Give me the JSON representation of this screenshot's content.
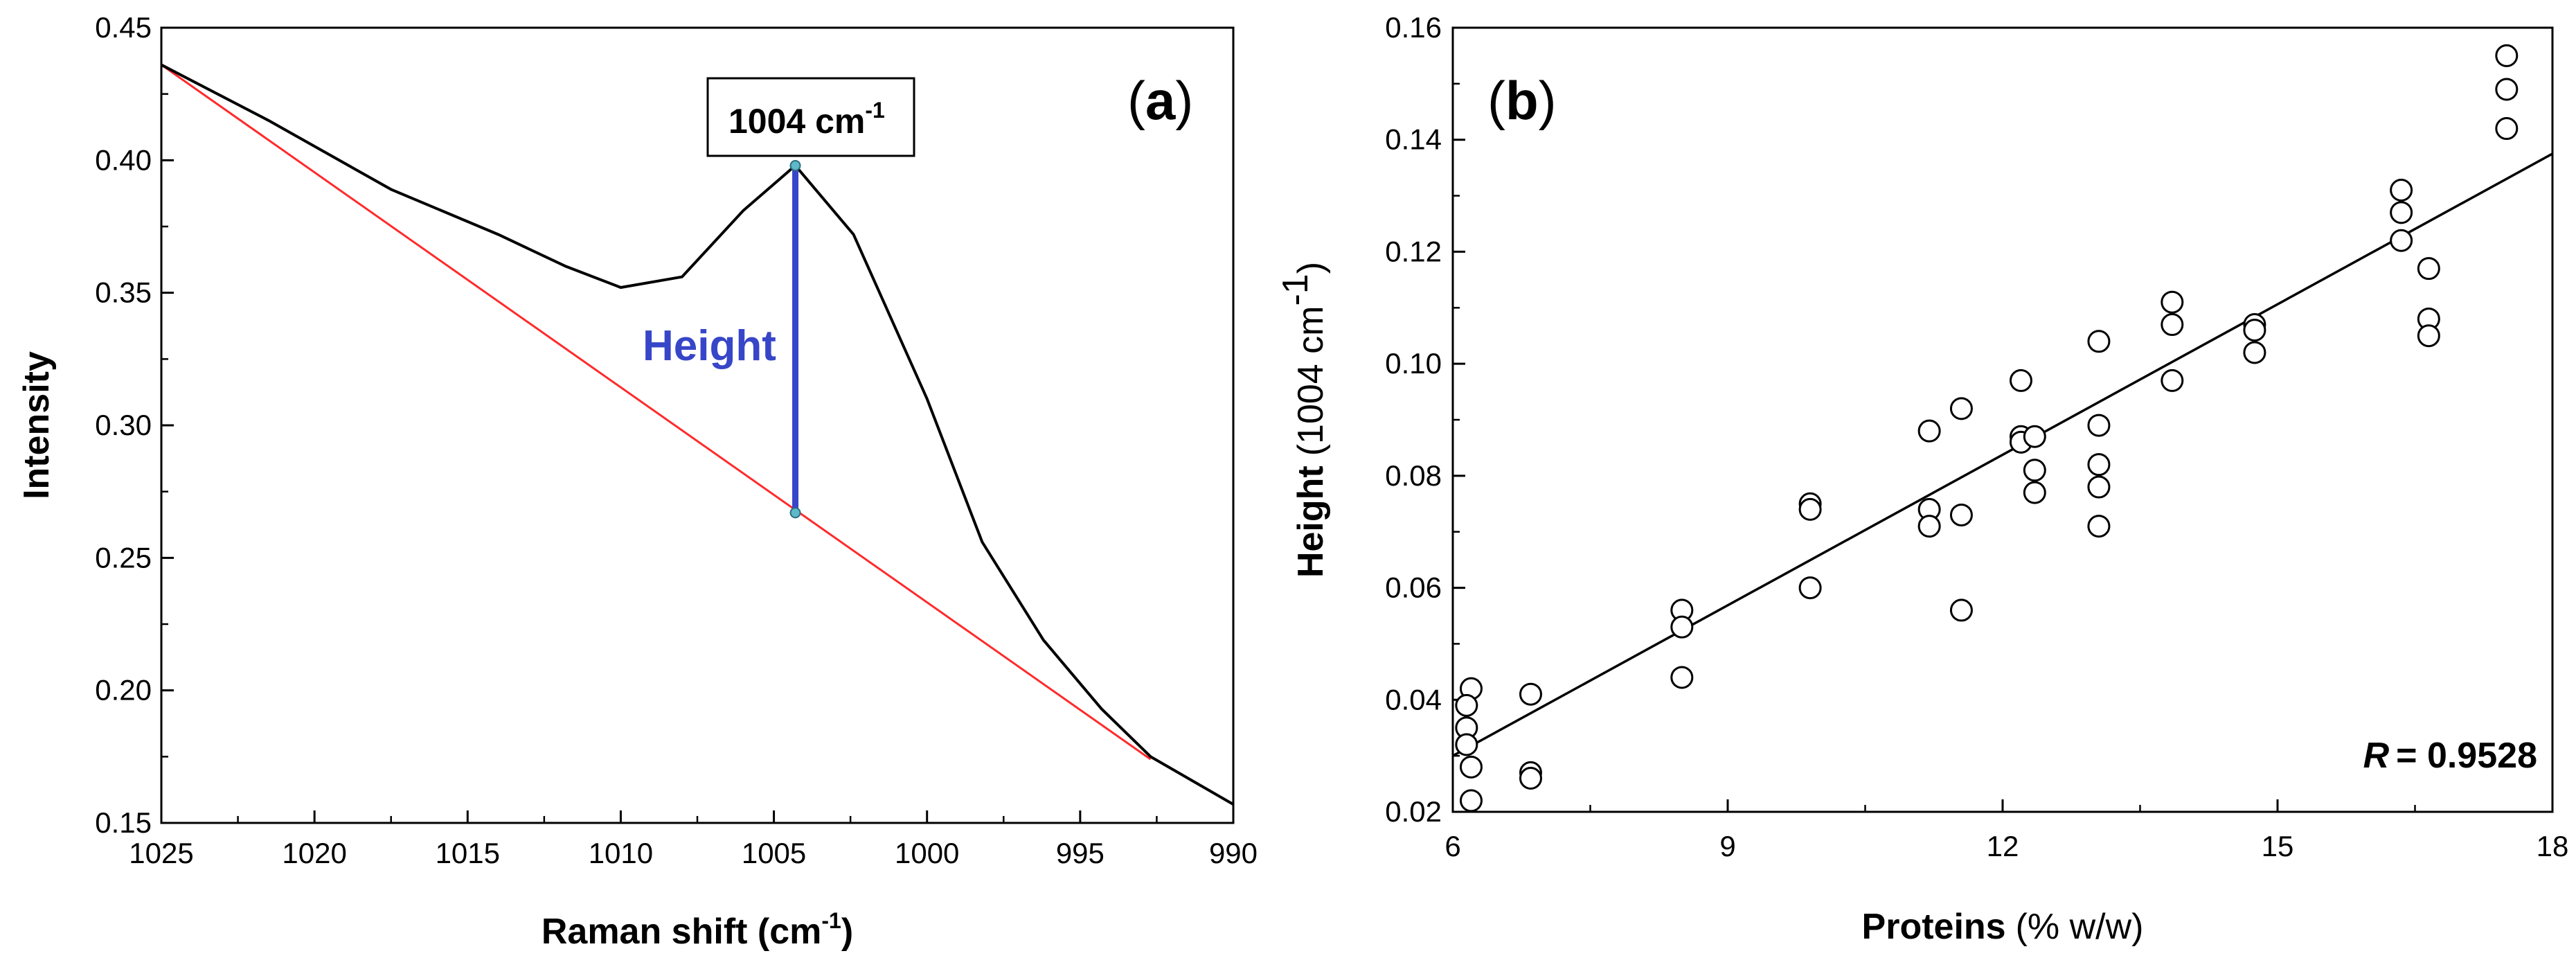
{
  "chart_data": [
    {
      "panel_label": "a",
      "type": "line",
      "xlabel_main": "Raman shift (cm",
      "xlabel_sup": "-1",
      "xlabel_end": ")",
      "ylabel": "Intensity",
      "xlim": [
        1025,
        990
      ],
      "ylim": [
        0.15,
        0.45
      ],
      "x_ticks": [
        "1025",
        "1020",
        "1015",
        "1010",
        "1005",
        "1000",
        "995",
        "990"
      ],
      "x_tick_values": [
        1025,
        1020,
        1015,
        1010,
        1005,
        1000,
        995,
        990
      ],
      "y_ticks": [
        "0.15",
        "0.20",
        "0.25",
        "0.30",
        "0.35",
        "0.40",
        "0.45"
      ],
      "y_tick_values": [
        0.15,
        0.2,
        0.25,
        0.3,
        0.35,
        0.4,
        0.45
      ],
      "series": [
        {
          "name": "spectrum",
          "color": "#000000",
          "x": [
            1025,
            1021.5,
            1017.5,
            1014,
            1011.8,
            1010,
            1008,
            1006,
            1004.3,
            1002.4,
            1000,
            998.2,
            996.2,
            994.3,
            992.7,
            990
          ],
          "y": [
            0.436,
            0.415,
            0.389,
            0.372,
            0.36,
            0.352,
            0.356,
            0.381,
            0.398,
            0.372,
            0.31,
            0.256,
            0.219,
            0.193,
            0.175,
            0.157
          ]
        },
        {
          "name": "baseline",
          "color": "#ff2a2a",
          "x": [
            1025,
            992.7
          ],
          "y": [
            0.436,
            0.174
          ]
        }
      ],
      "height_marker": {
        "x": 1004.3,
        "y_top": 0.398,
        "y_bottom": 0.267,
        "color": "#3746c8",
        "endpoint_color": "#5fb8c8"
      },
      "annotations": {
        "peak_label": "1004 cm",
        "peak_label_sup": "-1",
        "height_label": "Height"
      }
    },
    {
      "panel_label": "b",
      "type": "scatter",
      "xlabel_main": "Proteins",
      "xlabel_rest": "(% w/w)",
      "ylabel_main": "Height",
      "ylabel_rest": "(1004 cm",
      "ylabel_sup": "-1",
      "ylabel_end": ")",
      "xlim": [
        6,
        18
      ],
      "ylim": [
        0.02,
        0.16
      ],
      "x_ticks": [
        "6",
        "9",
        "12",
        "15",
        "18"
      ],
      "x_tick_values": [
        6,
        9,
        12,
        15,
        18
      ],
      "y_ticks": [
        "0.02",
        "0.04",
        "0.06",
        "0.08",
        "0.10",
        "0.12",
        "0.14",
        "0.16"
      ],
      "y_tick_values": [
        0.02,
        0.04,
        0.06,
        0.08,
        0.1,
        0.12,
        0.14,
        0.16
      ],
      "points": [
        [
          6.2,
          0.042
        ],
        [
          6.15,
          0.039
        ],
        [
          6.15,
          0.035
        ],
        [
          6.15,
          0.032
        ],
        [
          6.2,
          0.028
        ],
        [
          6.2,
          0.022
        ],
        [
          6.85,
          0.041
        ],
        [
          6.85,
          0.027
        ],
        [
          6.85,
          0.026
        ],
        [
          8.5,
          0.056
        ],
        [
          8.5,
          0.053
        ],
        [
          8.5,
          0.044
        ],
        [
          9.9,
          0.075
        ],
        [
          9.9,
          0.074
        ],
        [
          9.9,
          0.06
        ],
        [
          11.2,
          0.088
        ],
        [
          11.2,
          0.074
        ],
        [
          11.2,
          0.071
        ],
        [
          11.55,
          0.092
        ],
        [
          11.55,
          0.073
        ],
        [
          11.55,
          0.056
        ],
        [
          12.2,
          0.097
        ],
        [
          12.2,
          0.087
        ],
        [
          12.2,
          0.086
        ],
        [
          12.35,
          0.087
        ],
        [
          12.35,
          0.081
        ],
        [
          12.35,
          0.077
        ],
        [
          13.05,
          0.104
        ],
        [
          13.05,
          0.089
        ],
        [
          13.05,
          0.082
        ],
        [
          13.05,
          0.078
        ],
        [
          13.05,
          0.071
        ],
        [
          13.85,
          0.111
        ],
        [
          13.85,
          0.107
        ],
        [
          13.85,
          0.097
        ],
        [
          14.75,
          0.107
        ],
        [
          14.75,
          0.106
        ],
        [
          14.75,
          0.102
        ],
        [
          16.35,
          0.131
        ],
        [
          16.35,
          0.127
        ],
        [
          16.35,
          0.122
        ],
        [
          16.65,
          0.117
        ],
        [
          16.65,
          0.108
        ],
        [
          16.65,
          0.105
        ],
        [
          17.5,
          0.155
        ],
        [
          17.5,
          0.149
        ],
        [
          17.5,
          0.142
        ]
      ],
      "fit_line": {
        "x": [
          6,
          18
        ],
        "y": [
          0.03,
          0.1375
        ]
      },
      "r_label": "R",
      "r_value": "= 0.9528"
    }
  ]
}
